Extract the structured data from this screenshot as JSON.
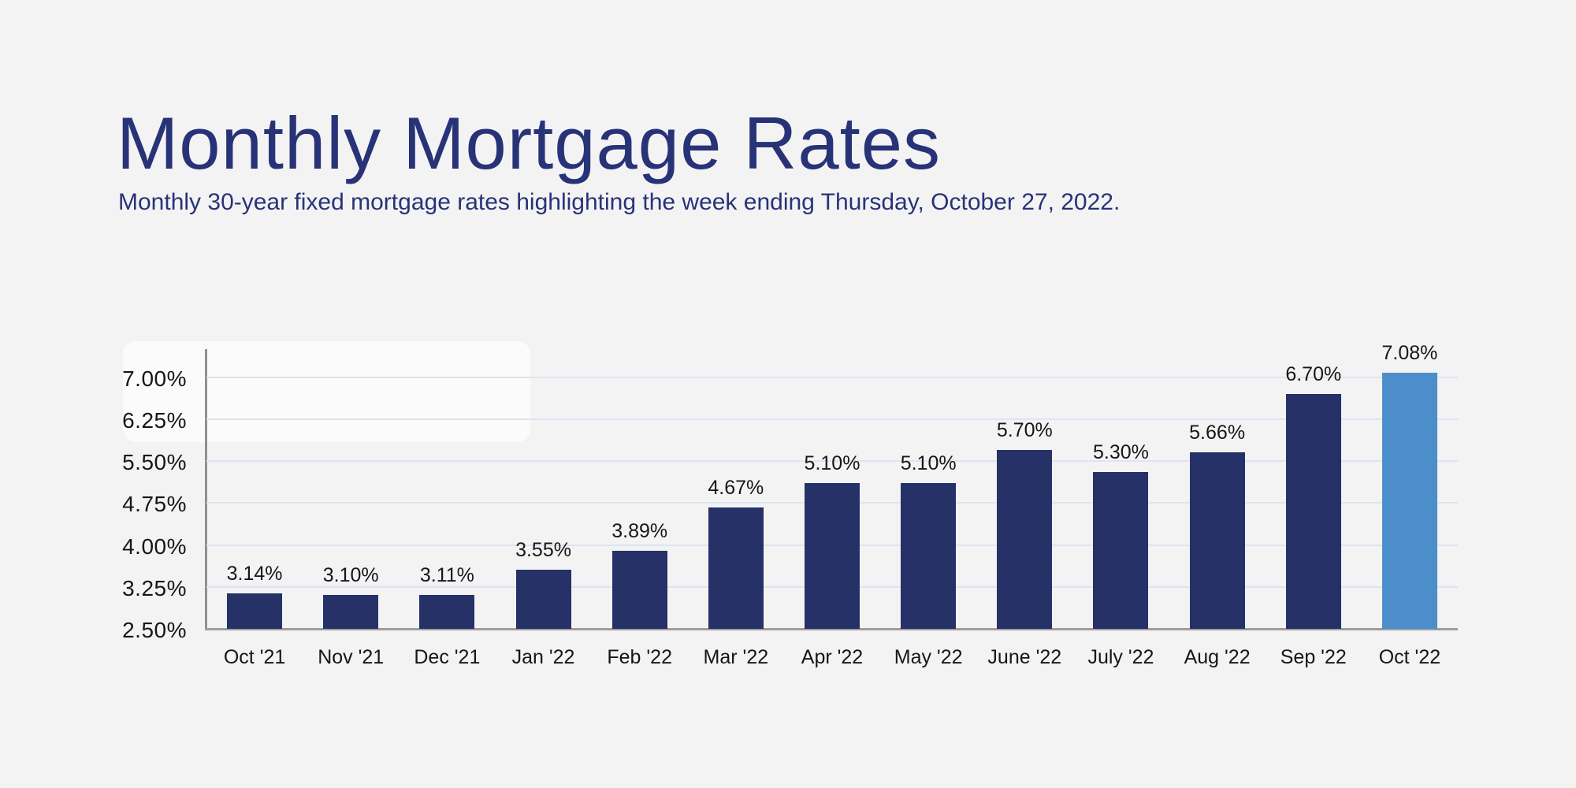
{
  "header": {
    "title": "Monthly Mortgage Rates",
    "subtitle": "Monthly 30-year fixed mortgage rates highlighting the week ending Thursday, October 27, 2022."
  },
  "colors": {
    "background": "#f3f3f4",
    "title": "#283377",
    "bar": "#263168",
    "highlighted_bar": "#4b8ecb",
    "gridline": "#dde4f1",
    "axis": "#9e9e9e",
    "label_text": "#161616"
  },
  "chart_data": {
    "type": "bar",
    "title": "Monthly Mortgage Rates",
    "xlabel": "",
    "ylabel": "",
    "categories": [
      "Oct '21",
      "Nov '21",
      "Dec '21",
      "Jan '22",
      "Feb '22",
      "Mar '22",
      "Apr '22",
      "May '22",
      "June '22",
      "July '22",
      "Aug '22",
      "Sep '22",
      "Oct '22"
    ],
    "values": [
      3.14,
      3.1,
      3.11,
      3.55,
      3.89,
      4.67,
      5.1,
      5.1,
      5.7,
      5.3,
      5.66,
      6.7,
      7.08
    ],
    "data_labels": [
      "3.14%",
      "3.10%",
      "3.11%",
      "3.55%",
      "3.89%",
      "4.67%",
      "5.10%",
      "5.10%",
      "5.70%",
      "5.30%",
      "5.66%",
      "6.70%",
      "7.08%"
    ],
    "highlighted_category": "Oct '22",
    "y_ticks": [
      {
        "value": 7.0,
        "label": "7.00%"
      },
      {
        "value": 6.25,
        "label": "6.25%"
      },
      {
        "value": 5.5,
        "label": "5.50%"
      },
      {
        "value": 4.75,
        "label": "4.75%"
      },
      {
        "value": 4.0,
        "label": "4.00%"
      },
      {
        "value": 3.25,
        "label": "3.25%"
      },
      {
        "value": 2.5,
        "label": "2.50%"
      }
    ],
    "ylim": [
      2.5,
      7.5
    ],
    "grid": true,
    "legend": false
  }
}
